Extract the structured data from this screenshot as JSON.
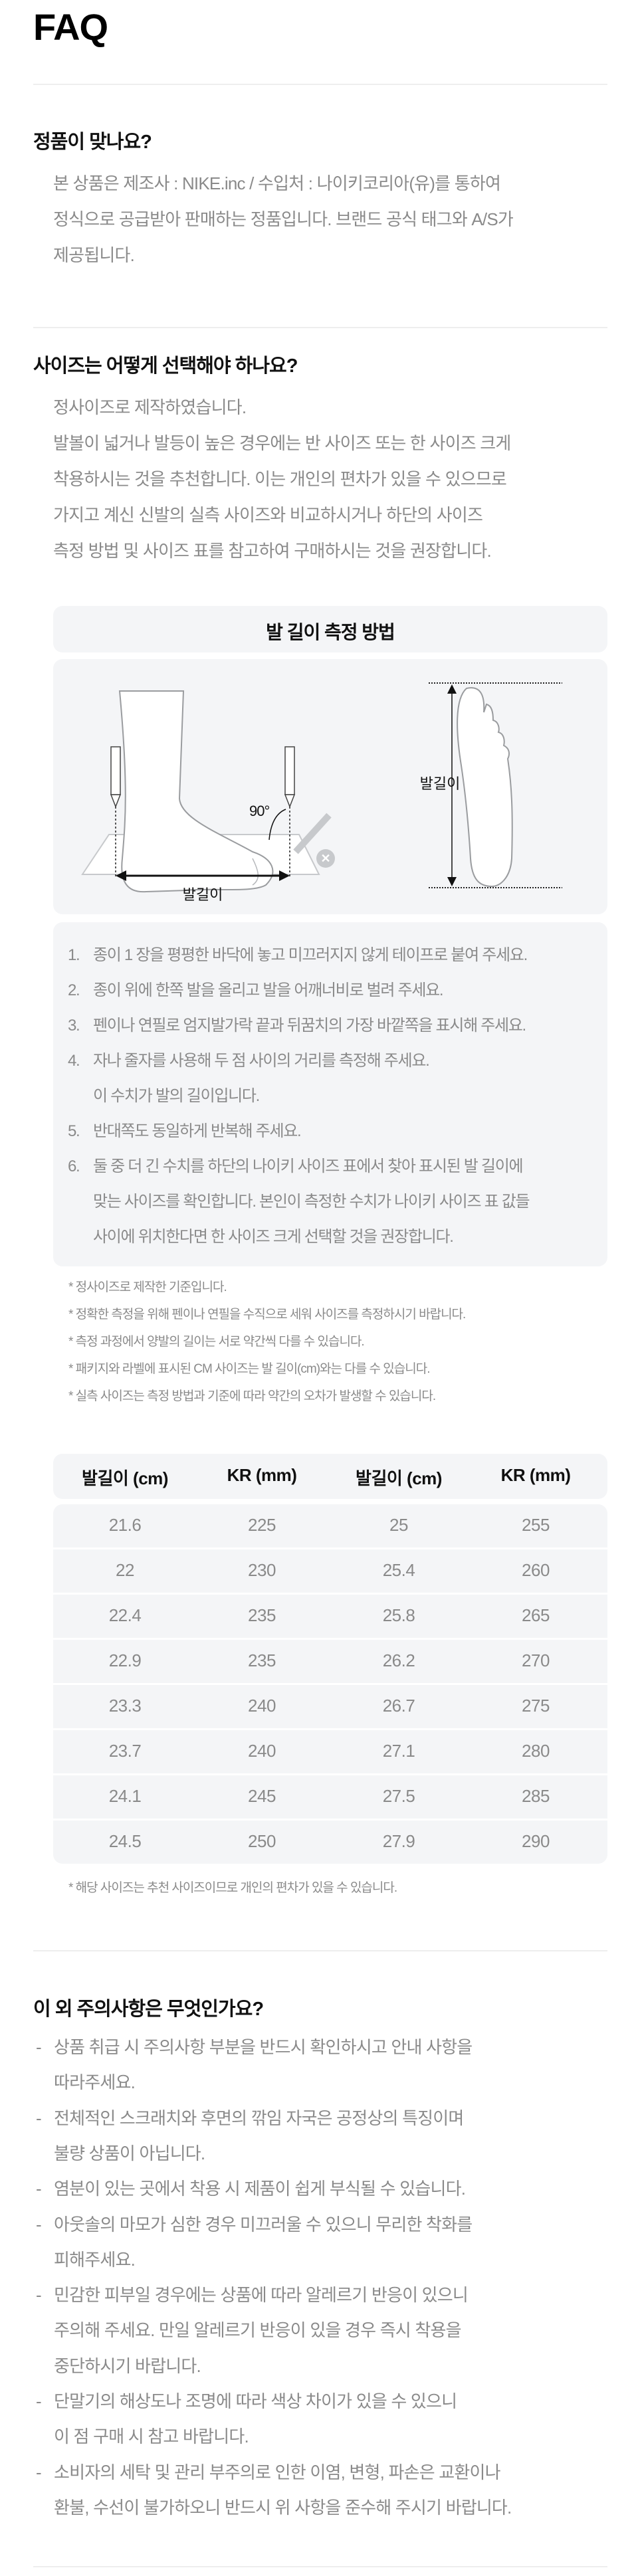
{
  "page_title": "FAQ",
  "q1": {
    "title": "정품이 맞나요?",
    "lines": [
      "본 상품은 제조사 : NIKE.inc / 수입처 : 나이키코리아(유)를 통하여",
      "정식으로 공급받아 판매하는 정품입니다. 브랜드 공식 태그와 A/S가",
      "제공됩니다."
    ]
  },
  "q2": {
    "title": "사이즈는 어떻게 선택해야 하나요?",
    "lines": [
      "정사이즈로 제작하였습니다.",
      "발볼이 넓거나 발등이 높은 경우에는 반 사이즈 또는 한 사이즈 크게",
      "착용하시는 것을 추천합니다. 이는 개인의 편차가 있을 수 있으므로",
      "가지고 계신 신발의 실측 사이즈와 비교하시거나 하단의 사이즈",
      "측정 방법 및 사이즈 표를 참고하여 구매하시는 것을 권장합니다."
    ],
    "measure": {
      "title": "발 길이 측정 방법",
      "illustration": {
        "side_label": "발길이",
        "angle_label": "90°",
        "sole_label": "발길이"
      },
      "steps": [
        {
          "num": "1.",
          "lines": [
            "종이 1 장을 평평한 바닥에 놓고 미끄러지지 않게 테이프로 붙여 주세요."
          ]
        },
        {
          "num": "2.",
          "lines": [
            "종이 위에 한쪽 발을 올리고 발을 어깨너비로 벌려 주세요."
          ]
        },
        {
          "num": "3.",
          "lines": [
            "펜이나 연필로 엄지발가락 끝과 뒤꿈치의 가장 바깥쪽을 표시해 주세요."
          ]
        },
        {
          "num": "4.",
          "lines": [
            "자나 줄자를 사용해 두 점 사이의 거리를 측정해 주세요.",
            "이 수치가 발의 길이입니다."
          ]
        },
        {
          "num": "5.",
          "lines": [
            "반대쪽도 동일하게 반복해 주세요."
          ]
        },
        {
          "num": "6.",
          "lines": [
            "둘 중 더 긴 수치를 하단의 나이키 사이즈 표에서 찾아 표시된 발 길이에",
            "맞는 사이즈를 확인합니다. 본인이 측정한 수치가 나이키 사이즈 표 값들",
            "사이에 위치한다면 한 사이즈 크게 선택할 것을 권장합니다."
          ]
        }
      ],
      "notes": [
        "* 정사이즈로 제작한 기준입니다.",
        "* 정확한 측정을 위해 펜이나 연필을 수직으로 세워 사이즈를 측정하시기 바랍니다.",
        "* 측정 과정에서 양발의 길이는 서로 약간씩 다를 수 있습니다.",
        "* 패키지와 라벨에 표시된 CM 사이즈는 발 길이(cm)와는 다를 수 있습니다.",
        "* 실측 사이즈는 측정 방법과 기준에 따라 약간의 오차가 발생할 수 있습니다."
      ]
    },
    "size_table": {
      "headers": [
        "발길이 (cm)",
        "KR (mm)",
        "발길이 (cm)",
        "KR (mm)"
      ],
      "rows": [
        [
          "21.6",
          "225",
          "25",
          "255"
        ],
        [
          "22",
          "230",
          "25.4",
          "260"
        ],
        [
          "22.4",
          "235",
          "25.8",
          "265"
        ],
        [
          "22.9",
          "235",
          "26.2",
          "270"
        ],
        [
          "23.3",
          "240",
          "26.7",
          "275"
        ],
        [
          "23.7",
          "240",
          "27.1",
          "280"
        ],
        [
          "24.1",
          "245",
          "27.5",
          "285"
        ],
        [
          "24.5",
          "250",
          "27.9",
          "290"
        ]
      ],
      "footnote": "* 해당 사이즈는 추천 사이즈이므로 개인의 편차가 있을 수 있습니다."
    }
  },
  "q3": {
    "title": "이 외 주의사항은 무엇인가요?",
    "bullet": "-",
    "items": [
      [
        "상품 취급 시 주의사항 부분을 반드시 확인하시고 안내 사항을",
        "따라주세요."
      ],
      [
        "전체적인 스크래치와 후면의 깎임 자국은 공정상의 특징이며",
        "불량 상품이 아닙니다."
      ],
      [
        "염분이 있는 곳에서 착용 시 제품이 쉽게 부식될 수 있습니다."
      ],
      [
        "아웃솔의 마모가 심한 경우 미끄러울 수 있으니 무리한 착화를",
        "피해주세요."
      ],
      [
        "민감한 피부일 경우에는 상품에 따라 알레르기 반응이 있으니",
        "주의해 주세요. 만일 알레르기 반응이 있을 경우 즉시 착용을",
        "중단하시기 바랍니다."
      ],
      [
        "단말기의 해상도나 조명에 따라 색상 차이가 있을 수 있으니",
        "이 점 구매 시 참고 바랍니다."
      ],
      [
        "소비자의 세탁 및 관리 부주의로 인한 이염, 변형, 파손은 교환이나",
        "환불, 수선이 불가하오니 반드시 위 사항을 준수해 주시기 바랍니다."
      ]
    ]
  },
  "colors": {
    "text": "#111111",
    "body_text": "#8a8a8a",
    "panel": "#f4f5f7",
    "divider": "#eeeeee"
  }
}
